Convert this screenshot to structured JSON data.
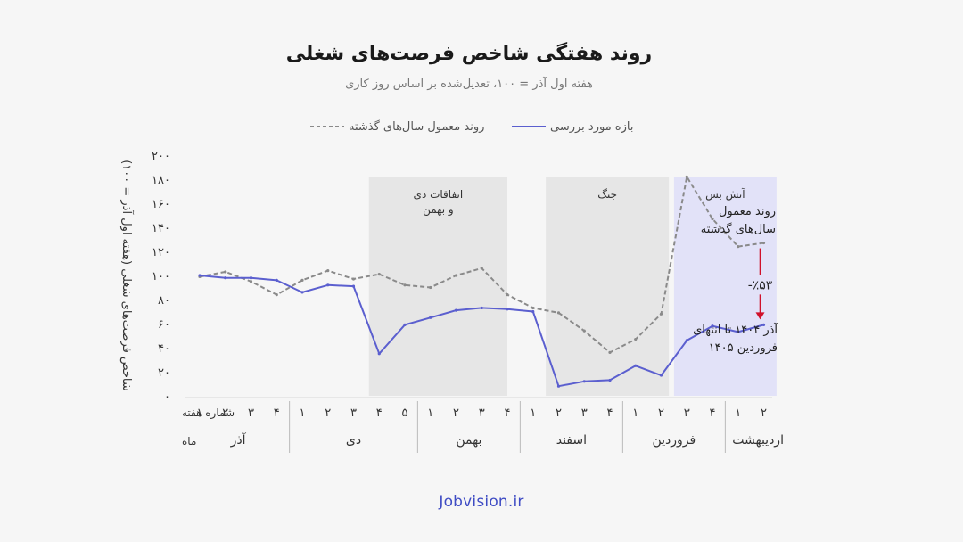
{
  "header": {
    "title": "روند هفتگی شاخص فرصت‌های شغلی",
    "subtitle": "هفته اول آذر = ۱۰۰، تعدیل‌شده بر اساس روز کاری"
  },
  "footer": {
    "brand": "Jobvision.ir"
  },
  "colors": {
    "series_current": "#5b5fcf",
    "series_typical": "#8a8a8a",
    "band_gray": "#e6e6e6",
    "band_ceasefire": "#e2e2f8",
    "arrow": "#d0112b"
  },
  "chart_data": {
    "type": "line",
    "ylabel": "شاخص فرصت‌های شغلی (هفته اول آذر = ۱۰۰)",
    "ylim": [
      0,
      200
    ],
    "y_ticks": [
      "۰",
      "۲۰",
      "۴۰",
      "۶۰",
      "۸۰",
      "۱۰۰",
      "۱۲۰",
      "۱۴۰",
      "۱۶۰",
      "۱۸۰",
      "۲۰۰"
    ],
    "y_tick_values": [
      0,
      20,
      40,
      60,
      80,
      100,
      120,
      140,
      160,
      180,
      200
    ],
    "grid": false,
    "legend_position": "top",
    "x_row_labels": {
      "week": "شماره هفته",
      "month": "ماه"
    },
    "weeks": [
      "۱",
      "۲",
      "۳",
      "۴",
      "۱",
      "۲",
      "۳",
      "۴",
      "۵",
      "۱",
      "۲",
      "۳",
      "۴",
      "۱",
      "۲",
      "۳",
      "۴",
      "۱",
      "۲",
      "۳",
      "۴",
      "۱",
      "۲"
    ],
    "months": [
      {
        "name": "آذر",
        "start": 0,
        "end": 3
      },
      {
        "name": "دی",
        "start": 4,
        "end": 8
      },
      {
        "name": "بهمن",
        "start": 9,
        "end": 12
      },
      {
        "name": "اسفند",
        "start": 13,
        "end": 16
      },
      {
        "name": "فروردین",
        "start": 17,
        "end": 20
      },
      {
        "name": "اردیبهشت",
        "start": 21,
        "end": 22
      }
    ],
    "series": [
      {
        "name": "بازه مورد بررسی",
        "style": "solid",
        "values": [
          100,
          98,
          98,
          96,
          86,
          92,
          91,
          35,
          59,
          65,
          71,
          73,
          72,
          70,
          8,
          12,
          13,
          25,
          17,
          46,
          58,
          53,
          59
        ]
      },
      {
        "name": "روند معمول سال‌های گذشته",
        "style": "dashed",
        "values": [
          99,
          103,
          95,
          84,
          96,
          104,
          97,
          101,
          92,
          90,
          100,
          106,
          84,
          73,
          69,
          54,
          36,
          47,
          68,
          182,
          147,
          124,
          127
        ]
      }
    ],
    "events": [
      {
        "label_lines": [
          "اتفاقات دی",
          "و بهمن"
        ],
        "start": 6.6,
        "end": 12.0,
        "kind": "gray"
      },
      {
        "label_lines": [
          "جنگ"
        ],
        "start": 13.5,
        "end": 18.3,
        "kind": "gray"
      },
      {
        "label_lines": [
          "آتش بس"
        ],
        "start": 18.5,
        "end": 22.5,
        "kind": "ceasefire"
      }
    ],
    "annotations": {
      "gap_label": "-٪۵۳",
      "typical_label_lines": [
        "روند معمول",
        "سال‌های گذشته"
      ],
      "current_label_lines": [
        "آذر ۱۴۰۴ تا انتهای",
        "فروردین ۱۴۰۵"
      ]
    }
  }
}
